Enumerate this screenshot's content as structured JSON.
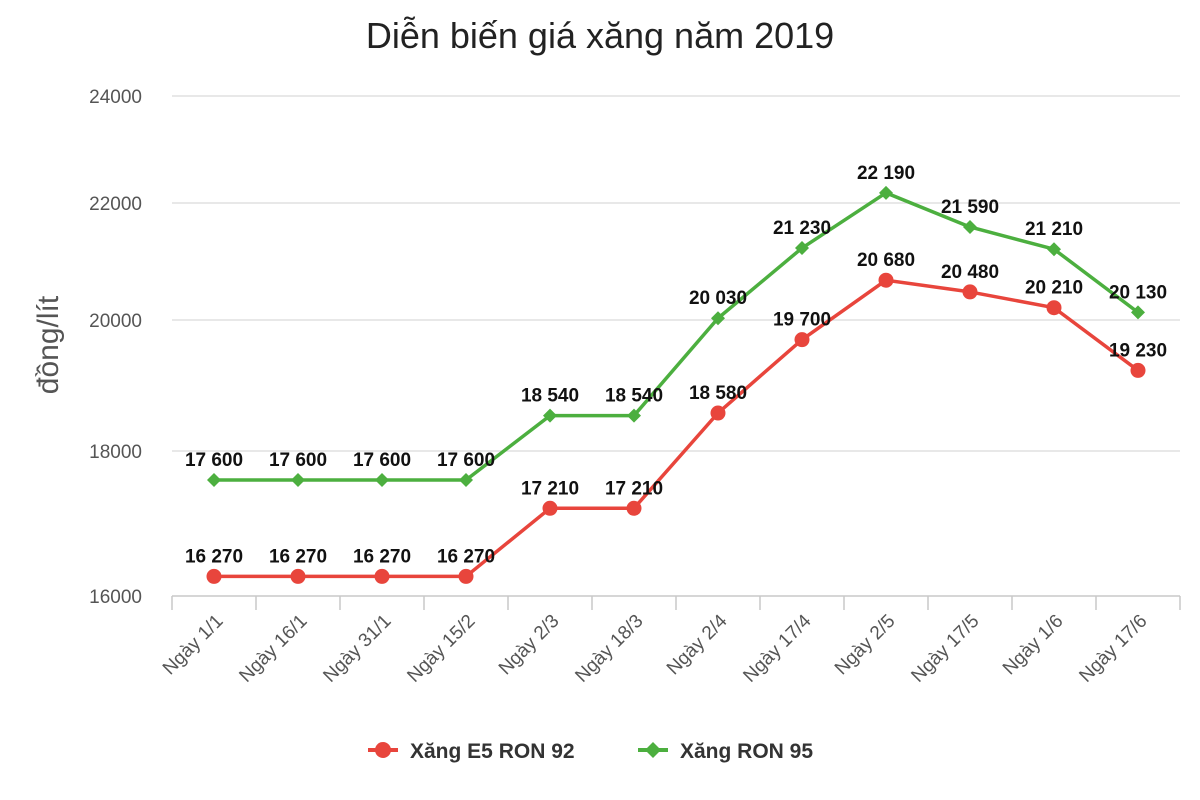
{
  "chart_data": {
    "type": "line",
    "title": "Diễn biến giá xăng năm 2019",
    "xlabel": "",
    "ylabel": "đồng/lít",
    "categories": [
      "Ngày 1/1",
      "Ngày 16/1",
      "Ngày 31/1",
      "Ngày 15/2",
      "Ngày 2/3",
      "Ngày 18/3",
      "Ngày 2/4",
      "Ngày 17/4",
      "Ngày 2/5",
      "Ngày 17/5",
      "Ngày 1/6",
      "Ngày 17/6"
    ],
    "y_ticks": [
      16000,
      18000,
      20000,
      22000,
      24000
    ],
    "y_tick_labels": [
      "16000",
      "18000",
      "20000",
      "22000",
      "24000"
    ],
    "ylim": [
      16000,
      24000
    ],
    "grid": true,
    "legend_position": "bottom",
    "series": [
      {
        "name": "Xăng E5 RON 92",
        "color": "#e8453c",
        "marker": "circle",
        "values": [
          16270,
          16270,
          16270,
          16270,
          17210,
          17210,
          18580,
          19700,
          20680,
          20480,
          20210,
          19230
        ],
        "labels": [
          "16 270",
          "16 270",
          "16 270",
          "16 270",
          "17 210",
          "17 210",
          "18 580",
          "19 700",
          "20 680",
          "20 480",
          "20 210",
          "19 230"
        ]
      },
      {
        "name": "Xăng RON 95",
        "color": "#4caf3f",
        "marker": "diamond",
        "values": [
          17600,
          17600,
          17600,
          17600,
          18540,
          18540,
          20030,
          21230,
          22190,
          21590,
          21210,
          20130
        ],
        "labels": [
          "17 600",
          "17 600",
          "17 600",
          "17 600",
          "18 540",
          "18 540",
          "20 030",
          "21 230",
          "22 190",
          "21 590",
          "21 210",
          "20 130"
        ]
      }
    ]
  }
}
